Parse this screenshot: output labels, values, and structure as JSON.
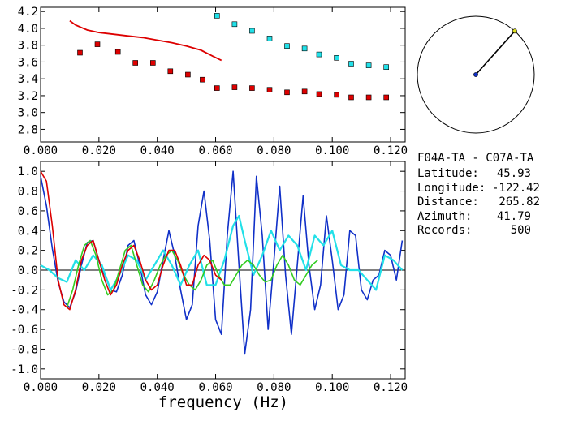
{
  "colors": {
    "red": "#dd0000",
    "cyan": "#22e0e8",
    "blue": "#1030c8",
    "green": "#33cc22",
    "yellow": "#dede20",
    "axis": "#000000"
  },
  "info": {
    "title": "F04A-TA - C07A-TA",
    "rows": [
      {
        "label": "Latitude:",
        "value": "45.93"
      },
      {
        "label": "Longitude:",
        "value": "-122.42"
      },
      {
        "label": "Distance:",
        "value": "265.82"
      },
      {
        "label": "Azimuth:",
        "value": "41.79"
      },
      {
        "label": "Records:",
        "value": "500"
      }
    ]
  },
  "compass": {
    "azimuth_deg": 41.79
  },
  "chart_data": [
    {
      "type": "scatter",
      "title": "",
      "xlabel": "",
      "ylabel": "",
      "xlim": [
        0.0,
        0.125
      ],
      "ylim": [
        2.65,
        4.25
      ],
      "x_ticks": [
        "0.000",
        "0.020",
        "0.040",
        "0.060",
        "0.080",
        "0.100",
        "0.120"
      ],
      "y_ticks": [
        "2.8",
        "3.0",
        "3.2",
        "3.4",
        "3.6",
        "3.8",
        "4.0",
        "4.2"
      ],
      "series": [
        {
          "kind": "squares",
          "color": "#dd0000",
          "x": [
            0.0135,
            0.0195,
            0.0265,
            0.0325,
            0.0385,
            0.0445,
            0.0505,
            0.0555,
            0.0605,
            0.0665,
            0.0725,
            0.0785,
            0.0845,
            0.0905,
            0.0955,
            0.1015,
            0.1065,
            0.1125,
            0.1185
          ],
          "y": [
            3.71,
            3.81,
            3.72,
            3.59,
            3.59,
            3.49,
            3.45,
            3.39,
            3.29,
            3.3,
            3.29,
            3.27,
            3.24,
            3.25,
            3.22,
            3.21,
            3.18,
            3.18,
            3.18
          ]
        },
        {
          "kind": "squares",
          "color": "#22e0e8",
          "x": [
            0.0605,
            0.0665,
            0.0725,
            0.0785,
            0.0845,
            0.0905,
            0.0955,
            0.1015,
            0.1065,
            0.1125,
            0.1185
          ],
          "y": [
            4.15,
            4.05,
            3.97,
            3.88,
            3.79,
            3.76,
            3.69,
            3.65,
            3.58,
            3.56,
            3.54
          ]
        },
        {
          "kind": "line",
          "color": "#dd0000",
          "x": [
            0.01,
            0.012,
            0.014,
            0.016,
            0.02,
            0.025,
            0.03,
            0.035,
            0.04,
            0.045,
            0.05,
            0.055,
            0.059,
            0.062
          ],
          "y": [
            4.09,
            4.04,
            4.01,
            3.98,
            3.95,
            3.93,
            3.91,
            3.89,
            3.86,
            3.83,
            3.79,
            3.74,
            3.67,
            3.62
          ]
        }
      ]
    },
    {
      "type": "line",
      "title": "",
      "xlabel": "frequency (Hz)",
      "ylabel": "",
      "xlim": [
        0.0,
        0.125
      ],
      "ylim": [
        -1.1,
        1.1
      ],
      "x_ticks": [
        "0.000",
        "0.020",
        "0.040",
        "0.060",
        "0.080",
        "0.100",
        "0.120"
      ],
      "y_ticks": [
        "-1.0",
        "-0.8",
        "-0.6",
        "-0.4",
        "-0.2",
        "0.0",
        "0.2",
        "0.4",
        "0.6",
        "0.8",
        "1.0"
      ],
      "series": [
        {
          "color": "#1030c8",
          "x": [
            0.0,
            0.002,
            0.004,
            0.006,
            0.008,
            0.01,
            0.012,
            0.014,
            0.016,
            0.018,
            0.02,
            0.022,
            0.024,
            0.026,
            0.028,
            0.03,
            0.032,
            0.034,
            0.036,
            0.038,
            0.04,
            0.042,
            0.044,
            0.046,
            0.048,
            0.05,
            0.052,
            0.054,
            0.056,
            0.058,
            0.06,
            0.062,
            0.064,
            0.066,
            0.068,
            0.07,
            0.072,
            0.074,
            0.076,
            0.078,
            0.08,
            0.082,
            0.084,
            0.086,
            0.088,
            0.09,
            0.092,
            0.094,
            0.096,
            0.098,
            0.1,
            0.102,
            0.104,
            0.106,
            0.108,
            0.11,
            0.112,
            0.114,
            0.116,
            0.118,
            0.12,
            0.122,
            0.124
          ],
          "y": [
            0.95,
            0.65,
            0.22,
            -0.12,
            -0.32,
            -0.38,
            -0.22,
            0.05,
            0.28,
            0.3,
            0.1,
            -0.05,
            -0.2,
            -0.22,
            -0.05,
            0.25,
            0.3,
            0.05,
            -0.25,
            -0.35,
            -0.22,
            0.1,
            0.4,
            0.15,
            -0.2,
            -0.5,
            -0.35,
            0.45,
            0.8,
            0.3,
            -0.5,
            -0.65,
            0.35,
            1.0,
            0.05,
            -0.85,
            -0.4,
            0.95,
            0.35,
            -0.6,
            0.1,
            0.85,
            -0.05,
            -0.65,
            0.05,
            0.75,
            0.05,
            -0.4,
            -0.15,
            0.55,
            0.1,
            -0.4,
            -0.25,
            0.4,
            0.35,
            -0.2,
            -0.3,
            -0.1,
            -0.05,
            0.2,
            0.15,
            -0.1,
            0.3
          ]
        },
        {
          "color": "#22e0e8",
          "x": [
            0.0,
            0.003,
            0.006,
            0.009,
            0.012,
            0.015,
            0.018,
            0.021,
            0.024,
            0.027,
            0.03,
            0.033,
            0.036,
            0.039,
            0.042,
            0.045,
            0.048,
            0.051,
            0.054,
            0.057,
            0.06,
            0.063,
            0.066,
            0.068,
            0.07,
            0.073,
            0.076,
            0.079,
            0.082,
            0.085,
            0.088,
            0.091,
            0.094,
            0.097,
            0.1,
            0.103,
            0.106,
            0.109,
            0.112,
            0.115,
            0.118,
            0.121,
            0.124
          ],
          "y": [
            0.05,
            0.0,
            -0.08,
            -0.12,
            0.1,
            0.0,
            0.15,
            0.05,
            -0.2,
            -0.05,
            0.15,
            0.1,
            -0.1,
            0.05,
            0.2,
            0.05,
            -0.15,
            0.05,
            0.2,
            -0.15,
            -0.15,
            0.1,
            0.45,
            0.55,
            0.3,
            -0.05,
            0.15,
            0.4,
            0.2,
            0.35,
            0.25,
            0.0,
            0.35,
            0.25,
            0.4,
            0.05,
            0.0,
            0.0,
            -0.1,
            -0.2,
            0.15,
            0.1,
            0.0
          ]
        },
        {
          "color": "#33cc22",
          "x": [
            0.009,
            0.011,
            0.013,
            0.015,
            0.017,
            0.019,
            0.021,
            0.023,
            0.025,
            0.027,
            0.029,
            0.031,
            0.033,
            0.035,
            0.037,
            0.039,
            0.041,
            0.043,
            0.045,
            0.047,
            0.049,
            0.051,
            0.053,
            0.055,
            0.057,
            0.059,
            0.061,
            0.063,
            0.065,
            0.067,
            0.069,
            0.071,
            0.073,
            0.075,
            0.077,
            0.079,
            0.081,
            0.083,
            0.085,
            0.087,
            0.089,
            0.091,
            0.093,
            0.095
          ],
          "y": [
            -0.38,
            -0.2,
            0.05,
            0.25,
            0.3,
            0.15,
            -0.1,
            -0.25,
            -0.2,
            0.0,
            0.2,
            0.25,
            0.05,
            -0.15,
            -0.22,
            -0.1,
            0.05,
            0.15,
            0.2,
            0.1,
            -0.05,
            -0.15,
            -0.2,
            -0.1,
            0.05,
            0.1,
            -0.05,
            -0.15,
            -0.15,
            -0.05,
            0.05,
            0.1,
            0.05,
            -0.05,
            -0.12,
            -0.1,
            0.05,
            0.15,
            0.05,
            -0.1,
            -0.15,
            -0.05,
            0.05,
            0.1
          ]
        },
        {
          "color": "#dd0000",
          "x": [
            0.0,
            0.002,
            0.004,
            0.006,
            0.008,
            0.01,
            0.012,
            0.014,
            0.016,
            0.018,
            0.02,
            0.022,
            0.024,
            0.026,
            0.028,
            0.03,
            0.032,
            0.034,
            0.036,
            0.038,
            0.04,
            0.042,
            0.044,
            0.046,
            0.048,
            0.05,
            0.052,
            0.054,
            0.056,
            0.058,
            0.06,
            0.062
          ],
          "y": [
            1.0,
            0.9,
            0.45,
            -0.1,
            -0.35,
            -0.4,
            -0.2,
            0.1,
            0.25,
            0.3,
            0.1,
            -0.1,
            -0.25,
            -0.15,
            0.05,
            0.2,
            0.25,
            0.1,
            -0.1,
            -0.2,
            -0.15,
            0.05,
            0.2,
            0.2,
            0.05,
            -0.15,
            -0.15,
            0.05,
            0.15,
            0.1,
            -0.05,
            -0.1
          ]
        }
      ]
    }
  ]
}
